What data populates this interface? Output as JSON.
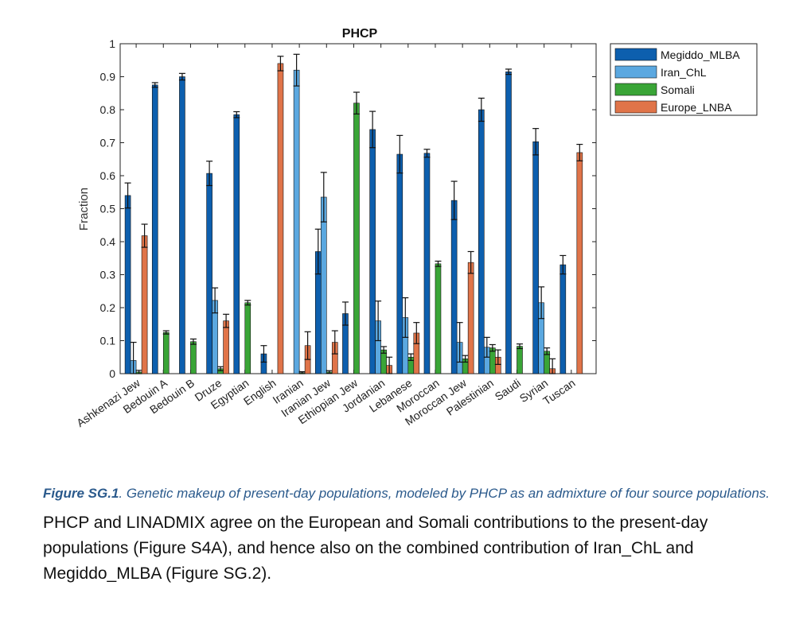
{
  "chart_data": {
    "type": "bar",
    "title": "PHCP",
    "xlabel": "",
    "ylabel": "Fraction",
    "ylim": [
      0,
      1
    ],
    "yticks": [
      0,
      0.1,
      0.2,
      0.3,
      0.4,
      0.5,
      0.6,
      0.7,
      0.8,
      0.9,
      1
    ],
    "ytick_labels": [
      "0",
      "0.1",
      "0.2",
      "0.3",
      "0.4",
      "0.5",
      "0.6",
      "0.7",
      "0.8",
      "0.9",
      "1"
    ],
    "legend_position": "top-right, outside plot",
    "grid": false,
    "categories": [
      "Ashkenazi Jew",
      "Bedouin A",
      "Bedouin B",
      "Druze",
      "Egyptian",
      "English",
      "Iranian",
      "Iranian Jew",
      "Ethiopian Jew",
      "Jordanian",
      "Lebanese",
      "Moroccan",
      "Moroccan Jew",
      "Palestinian",
      "Saudi",
      "Syrian",
      "Tuscan"
    ],
    "series": [
      {
        "name": "Megiddo_MLBA",
        "color": "#0d5fae",
        "values": [
          0.54,
          0.875,
          0.9,
          0.607,
          0.785,
          0.06,
          0.0,
          0.37,
          0.182,
          0.74,
          0.665,
          0.668,
          0.525,
          0.8,
          0.915,
          0.703,
          0.33
        ],
        "err": [
          0.038,
          0.007,
          0.01,
          0.037,
          0.009,
          0.025,
          0.0,
          0.068,
          0.035,
          0.055,
          0.057,
          0.012,
          0.058,
          0.035,
          0.008,
          0.04,
          0.028
        ]
      },
      {
        "name": "Iran_ChL",
        "color": "#5ba8e0",
        "values": [
          0.04,
          0.0,
          0.0,
          0.222,
          0.0,
          0.0,
          0.92,
          0.535,
          0.0,
          0.16,
          0.17,
          0.0,
          0.095,
          0.08,
          0.0,
          0.215,
          0.0
        ],
        "err": [
          0.055,
          0.0,
          0.0,
          0.038,
          0.0,
          0.0,
          0.048,
          0.075,
          0.0,
          0.06,
          0.06,
          0.0,
          0.06,
          0.03,
          0.0,
          0.048,
          0.0
        ]
      },
      {
        "name": "Somali",
        "color": "#3aa537",
        "values": [
          0.005,
          0.125,
          0.097,
          0.015,
          0.215,
          0.0,
          0.003,
          0.005,
          0.82,
          0.072,
          0.05,
          0.333,
          0.045,
          0.078,
          0.083,
          0.068,
          0.0
        ],
        "err": [
          0.005,
          0.005,
          0.008,
          0.006,
          0.007,
          0.0,
          0.003,
          0.004,
          0.033,
          0.01,
          0.01,
          0.008,
          0.01,
          0.01,
          0.007,
          0.01,
          0.0
        ]
      },
      {
        "name": "Europe_LNBA",
        "color": "#e07449",
        "values": [
          0.418,
          0.0,
          0.0,
          0.16,
          0.0,
          0.94,
          0.085,
          0.095,
          0.0,
          0.025,
          0.123,
          0.0,
          0.337,
          0.05,
          0.0,
          0.015,
          0.67
        ],
        "err": [
          0.035,
          0.0,
          0.0,
          0.02,
          0.0,
          0.022,
          0.042,
          0.035,
          0.0,
          0.025,
          0.032,
          0.0,
          0.033,
          0.022,
          0.0,
          0.03,
          0.025
        ]
      }
    ]
  },
  "caption": {
    "label": "Figure SG.1",
    "text": ". Genetic makeup of present-day populations, modeled by PHCP as an admixture of four source populations."
  },
  "body_text": "PHCP and LINADMIX agree on the European and Somali contributions to the present-day populations (Figure S4A), and hence also on the combined contribution of Iran_ChL and Megiddo_MLBA (Figure SG.2)."
}
